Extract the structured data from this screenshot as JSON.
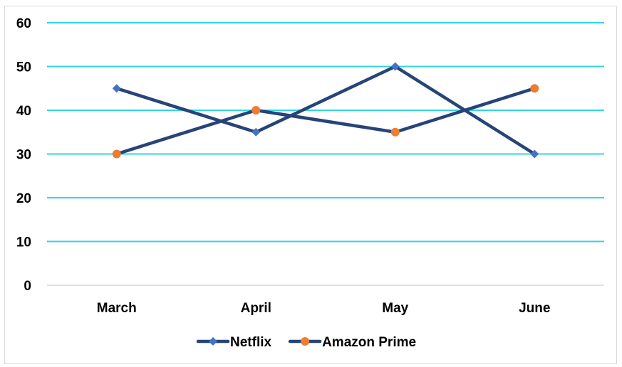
{
  "chart_data": {
    "type": "line",
    "title": "",
    "xlabel": "",
    "ylabel": "",
    "categories": [
      "March",
      "April",
      "May",
      "June"
    ],
    "ylim": [
      0,
      60
    ],
    "yticks": [
      0,
      10,
      20,
      30,
      40,
      50,
      60
    ],
    "ytick_labels": [
      "0",
      "10",
      "20",
      "30",
      "40",
      "50",
      "60"
    ],
    "grid": true,
    "legend_position": "bottom",
    "series": [
      {
        "name": "Netflix",
        "values": [
          45,
          35,
          50,
          30
        ],
        "line_color": "#264478",
        "marker": "diamond",
        "marker_color": "#4472c4"
      },
      {
        "name": "Amazon Prime",
        "values": [
          30,
          40,
          35,
          45
        ],
        "line_color": "#264478",
        "marker": "circle",
        "marker_color": "#ed7d31"
      }
    ],
    "colors": {
      "gridline": "#33d6e0",
      "baseline": "#d9d9d9"
    }
  }
}
